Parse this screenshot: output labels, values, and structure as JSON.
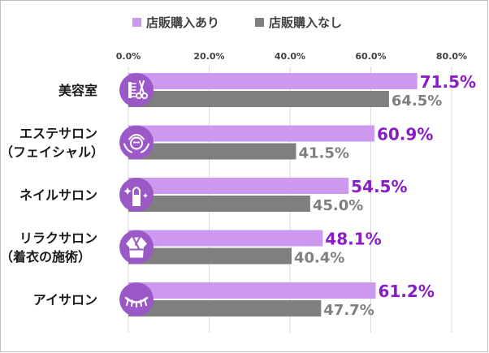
{
  "chart_data": {
    "type": "bar",
    "orientation": "horizontal",
    "categories": [
      [
        "美容室"
      ],
      [
        "エステサロン",
        "（フェイシャル）"
      ],
      [
        "ネイルサロン"
      ],
      [
        "リラクサロン",
        "（着衣の施術）"
      ],
      [
        "アイサロン"
      ]
    ],
    "series": [
      {
        "name": "店販購入あり",
        "values": [
          71.5,
          60.9,
          54.5,
          48.1,
          61.2
        ],
        "color": "#cc99ee",
        "label_color": "#8a1cc5"
      },
      {
        "name": "店販購入なし",
        "values": [
          64.5,
          41.5,
          45.0,
          40.4,
          47.7
        ],
        "color": "#7f7f7f",
        "label_color": "#7f7f7f"
      }
    ],
    "xlim": [
      0,
      80
    ],
    "xticks": [
      0,
      20,
      40,
      60,
      80
    ],
    "tick_labels": [
      "0.0%",
      "20.0%",
      "40.0%",
      "60.0%",
      "80.0%"
    ],
    "data_labels": [
      [
        "71.5%",
        "60.9%",
        "54.5%",
        "48.1%",
        "61.2%"
      ],
      [
        "64.5%",
        "41.5%",
        "45.0%",
        "40.4%",
        "47.7%"
      ]
    ],
    "icons": [
      "hair-salon-icon",
      "facial-esthetic-icon",
      "nail-icon",
      "relaxation-robe-icon",
      "eyelash-icon"
    ],
    "icon_color": "#9b59c8",
    "grid": true,
    "legend": "top"
  }
}
